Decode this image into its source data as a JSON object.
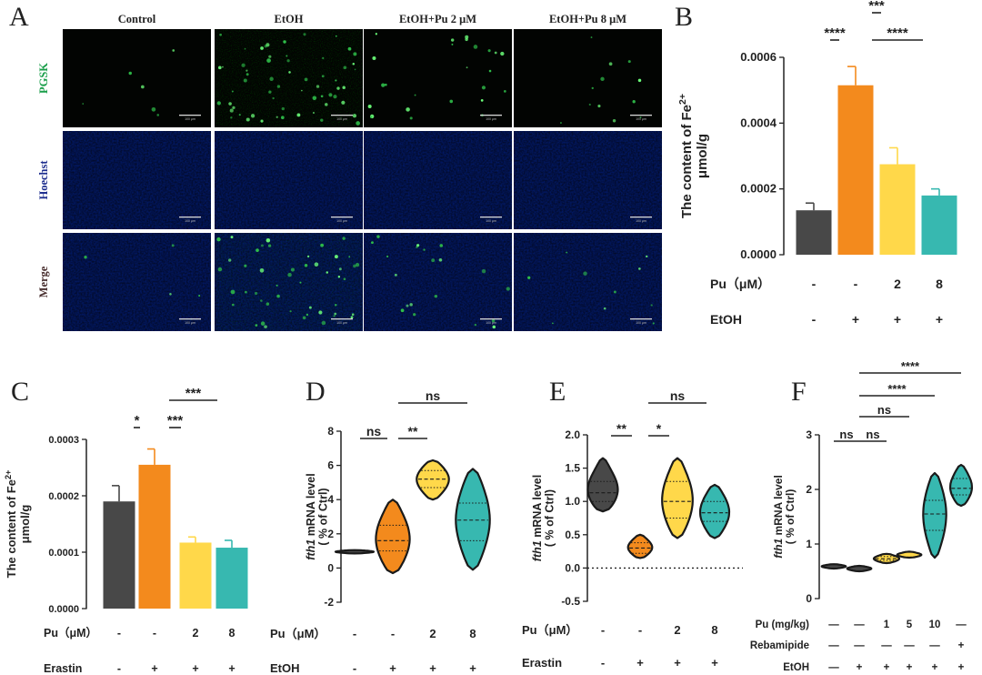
{
  "panel_letters": {
    "A": "A",
    "B": "B",
    "C": "C",
    "D": "D",
    "E": "E",
    "F": "F"
  },
  "panel_a": {
    "columns": [
      "Control",
      "EtOH",
      "EtOH+Pu 2 μM",
      "EtOH+Pu 8 μM"
    ],
    "rows": [
      "PGSK",
      "Hoechst",
      "Merge"
    ],
    "scale_bar_label": "100 μm",
    "colors": {
      "pgsk": "#1a9e4a",
      "hoechst": "#1f2f8f",
      "merge": "#4a3030"
    }
  },
  "colors": {
    "dark": "#484848",
    "orange": "#f38a1d",
    "yellow": "#ffd84a",
    "teal": "#37b8b0"
  },
  "chart_data": [
    {
      "panel": "B",
      "type": "bar",
      "ylabel_line1": "The content of Fe",
      "ylabel_sup": "2+",
      "ylabel_line2": "μmol/g",
      "ylim": [
        0,
        0.0006
      ],
      "yticks": [
        0,
        0.0002,
        0.0004,
        0.0006
      ],
      "ytick_labels": [
        "0.0000",
        "0.0002",
        "0.0004",
        "0.0006"
      ],
      "values": [
        0.000135,
        0.000515,
        0.000275,
        0.00018
      ],
      "errors": [
        2.2e-05,
        5.7e-05,
        5e-05,
        2e-05
      ],
      "bar_colors": [
        "#484848",
        "#f38a1d",
        "#ffd84a",
        "#37b8b0"
      ],
      "significance": [
        {
          "from": 1,
          "to": 2,
          "label": "***"
        },
        {
          "from": 0,
          "to": 1,
          "label": "****"
        },
        {
          "from": 1,
          "to": 3,
          "label": "****"
        }
      ],
      "treatments": [
        {
          "name": "Pu（μM）",
          "values": [
            "-",
            "-",
            "2",
            "8"
          ]
        },
        {
          "name": "EtOH",
          "values": [
            "-",
            "+",
            "+",
            "+"
          ]
        }
      ]
    },
    {
      "panel": "C",
      "type": "bar",
      "ylabel_line1": "The content of Fe",
      "ylabel_sup": "2+",
      "ylabel_line2": "μmol/g",
      "ylim": [
        0,
        0.0003
      ],
      "yticks": [
        0,
        0.0001,
        0.0002,
        0.0003
      ],
      "ytick_labels": [
        "0.0000",
        "0.0001",
        "0.0002",
        "0.0003"
      ],
      "values": [
        0.00019,
        0.000255,
        0.000117,
        0.000108
      ],
      "errors": [
        2.8e-05,
        2.8e-05,
        1e-05,
        1.3e-05
      ],
      "bar_colors": [
        "#484848",
        "#f38a1d",
        "#ffd84a",
        "#37b8b0"
      ],
      "significance": [
        {
          "from": 0,
          "to": 1,
          "label": "*"
        },
        {
          "from": 1,
          "to": 2,
          "label": "***"
        },
        {
          "from": 1,
          "to": 3,
          "label": "***"
        }
      ],
      "treatments": [
        {
          "name": "Pu（μM）",
          "values": [
            "-",
            "-",
            "2",
            "8"
          ]
        },
        {
          "name": "Erastin",
          "values": [
            "-",
            "+",
            "+",
            "+"
          ]
        }
      ]
    },
    {
      "panel": "D",
      "type": "violin",
      "ylabel_gene": "fth1",
      "ylabel_rest": "mRNA level",
      "ylabel_line2": "( % of Ctrl)",
      "ylim": [
        -2,
        8
      ],
      "yticks": [
        -2,
        0,
        2,
        4,
        6,
        8
      ],
      "ytick_labels": [
        "-2",
        "0",
        "2",
        "4",
        "6",
        "8"
      ],
      "zero_line": false,
      "groups": [
        {
          "min": 0.85,
          "max": 1.05,
          "q1": 0.92,
          "median": 0.95,
          "q3": 0.98,
          "width": 0.45
        },
        {
          "min": -0.3,
          "max": 4.0,
          "q1": 1.0,
          "median": 1.6,
          "q3": 2.5,
          "width": 0.4
        },
        {
          "min": 4.0,
          "max": 6.3,
          "q1": 4.7,
          "median": 5.2,
          "q3": 5.7,
          "width": 0.38
        },
        {
          "min": -0.1,
          "max": 5.8,
          "q1": 1.6,
          "median": 2.8,
          "q3": 3.8,
          "width": 0.4
        }
      ],
      "colors": [
        "#484848",
        "#f38a1d",
        "#ffd84a",
        "#37b8b0"
      ],
      "significance": [
        {
          "from": 0,
          "to": 1,
          "label": "ns",
          "level": 0
        },
        {
          "from": 1,
          "to": 2,
          "label": "**",
          "level": 0
        },
        {
          "from": 1,
          "to": 3,
          "label": "ns",
          "level": 1
        }
      ],
      "treatments": [
        {
          "name": "Pu（μM）",
          "values": [
            "-",
            "-",
            "2",
            "8"
          ]
        },
        {
          "name": "EtOH",
          "values": [
            "-",
            "+",
            "+",
            "+"
          ]
        }
      ]
    },
    {
      "panel": "E",
      "type": "violin",
      "ylabel_gene": "fth1",
      "ylabel_rest": "mRNA level",
      "ylabel_line2": "( % of Ctrl)",
      "ylim": [
        -0.5,
        2.0
      ],
      "yticks": [
        -0.5,
        0,
        0.5,
        1.0,
        1.5,
        2.0
      ],
      "ytick_labels": [
        "-0.5",
        "0.0",
        "0.5",
        "1.0",
        "1.5",
        "2.0"
      ],
      "zero_line": true,
      "groups": [
        {
          "min": 0.85,
          "max": 1.65,
          "q1": 1.0,
          "median": 1.13,
          "q3": 1.3,
          "width": 0.38
        },
        {
          "min": 0.15,
          "max": 0.5,
          "q1": 0.22,
          "median": 0.3,
          "q3": 0.38,
          "width": 0.3
        },
        {
          "min": 0.45,
          "max": 1.65,
          "q1": 0.75,
          "median": 1.0,
          "q3": 1.3,
          "width": 0.38
        },
        {
          "min": 0.45,
          "max": 1.25,
          "q1": 0.7,
          "median": 0.83,
          "q3": 1.0,
          "width": 0.36
        }
      ],
      "colors": [
        "#484848",
        "#f38a1d",
        "#ffd84a",
        "#37b8b0"
      ],
      "significance": [
        {
          "from": 0,
          "to": 1,
          "label": "**",
          "level": 0
        },
        {
          "from": 1,
          "to": 2,
          "label": "*",
          "level": 0
        },
        {
          "from": 1,
          "to": 3,
          "label": "ns",
          "level": 1
        }
      ],
      "treatments": [
        {
          "name": "Pu（μM）",
          "values": [
            "-",
            "-",
            "2",
            "8"
          ]
        },
        {
          "name": "Erastin",
          "values": [
            "-",
            "+",
            "+",
            "+"
          ]
        }
      ]
    },
    {
      "panel": "F",
      "type": "violin",
      "ylabel_gene": "fth1",
      "ylabel_rest": "mRNA level",
      "ylabel_line2": "( % of Ctrl)",
      "ylim": [
        0,
        3
      ],
      "yticks": [
        0,
        1,
        2,
        3
      ],
      "ytick_labels": [
        "0",
        "1",
        "2",
        "3"
      ],
      "zero_line": false,
      "groups": [
        {
          "min": 0.55,
          "max": 0.63,
          "q1": 0.58,
          "median": 0.59,
          "q3": 0.61,
          "width": 0.4
        },
        {
          "min": 0.5,
          "max": 0.6,
          "q1": 0.53,
          "median": 0.55,
          "q3": 0.57,
          "width": 0.4
        },
        {
          "min": 0.65,
          "max": 0.82,
          "q1": 0.7,
          "median": 0.73,
          "q3": 0.77,
          "width": 0.42
        },
        {
          "min": 0.75,
          "max": 0.86,
          "q1": 0.78,
          "median": 0.8,
          "q3": 0.83,
          "width": 0.4
        },
        {
          "min": 0.75,
          "max": 2.3,
          "q1": 1.25,
          "median": 1.55,
          "q3": 1.8,
          "width": 0.38
        },
        {
          "min": 1.7,
          "max": 2.45,
          "q1": 1.9,
          "median": 2.02,
          "q3": 2.2,
          "width": 0.36
        }
      ],
      "colors": [
        "#484848",
        "#484848",
        "#ffd84a",
        "#ffd84a",
        "#37b8b0",
        "#37b8b0"
      ],
      "significance": [
        {
          "from": 0,
          "to": 1,
          "label": "ns",
          "level": 0
        },
        {
          "from": 1,
          "to": 2,
          "label": "ns",
          "level": 0
        },
        {
          "from": 1,
          "to": 3,
          "label": "ns",
          "level": 1
        },
        {
          "from": 1,
          "to": 4,
          "label": "****",
          "level": 2
        },
        {
          "from": 1,
          "to": 5,
          "label": "****",
          "level": 3
        }
      ],
      "treatments": [
        {
          "name": "Pu (mg/kg)",
          "values": [
            "—",
            "—",
            "1",
            "5",
            "10",
            "—"
          ]
        },
        {
          "name": "Rebamipide",
          "values": [
            "—",
            "—",
            "—",
            "—",
            "—",
            "+"
          ]
        },
        {
          "name": "EtOH",
          "values": [
            "—",
            "+",
            "+",
            "+",
            "+",
            "+"
          ]
        }
      ]
    }
  ]
}
